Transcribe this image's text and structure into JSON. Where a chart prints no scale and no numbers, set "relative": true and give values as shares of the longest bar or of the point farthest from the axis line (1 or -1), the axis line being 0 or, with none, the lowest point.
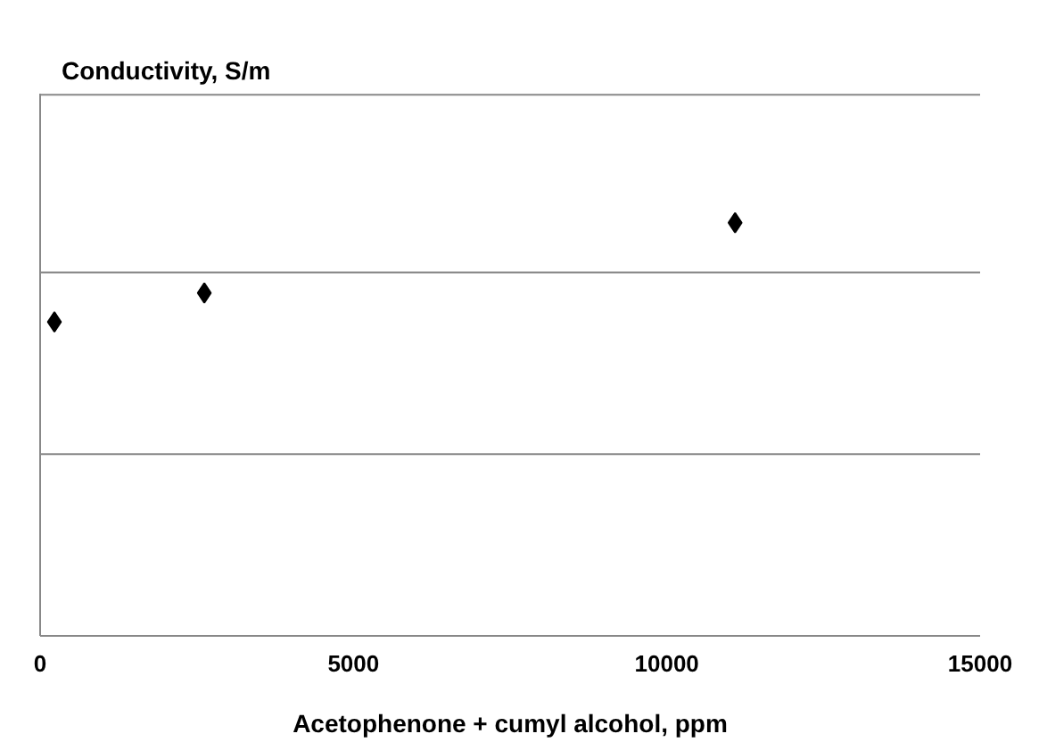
{
  "chart_data": {
    "type": "scatter",
    "annotations": [
      "Conductivity, S/m"
    ],
    "xlabel": "Acetophenone + cumyl alcohol, ppm",
    "relative": true,
    "xlim": [
      0,
      15000
    ],
    "xticks": [
      0,
      5000,
      10000,
      15000
    ],
    "marker": "diamond",
    "ref_lines": [
      {
        "axis": "y",
        "value": 0.44,
        "color": "#888888"
      },
      {
        "axis": "y",
        "value": 0.88,
        "color": "#888888"
      },
      {
        "axis": "y",
        "value": 1.31,
        "color": "#888888"
      }
    ],
    "series": [
      {
        "color": "#000000",
        "x": [
          228,
          2620,
          11090
        ],
        "values": [
          0.76,
          0.83,
          1
        ]
      }
    ]
  }
}
